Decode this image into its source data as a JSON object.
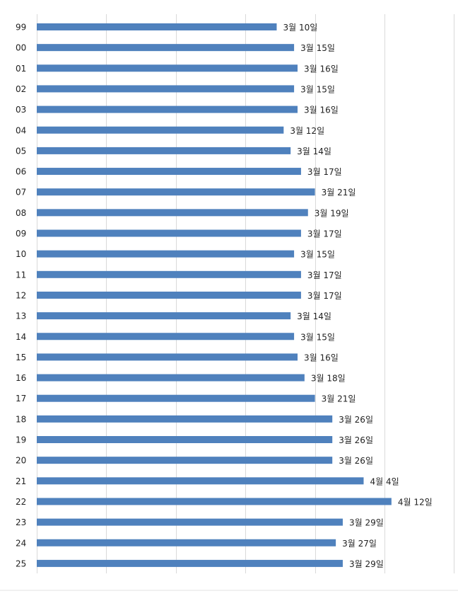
{
  "chart_data": {
    "type": "bar",
    "orientation": "horizontal",
    "categories": [
      "99",
      "00",
      "01",
      "02",
      "03",
      "04",
      "05",
      "06",
      "07",
      "08",
      "09",
      "10",
      "11",
      "12",
      "13",
      "14",
      "15",
      "16",
      "17",
      "18",
      "19",
      "20",
      "21",
      "22",
      "23",
      "24",
      "25"
    ],
    "series": [
      {
        "values": [
          69,
          74,
          75,
          74,
          75,
          71,
          73,
          76,
          80,
          78,
          76,
          74,
          76,
          76,
          73,
          74,
          75,
          77,
          80,
          85,
          85,
          85,
          94,
          102,
          88,
          86,
          88
        ]
      }
    ],
    "data_labels": [
      "3월 10일",
      "3월 15일",
      "3월 16일",
      "3월 15일",
      "3월 16일",
      "3월 12일",
      "3월 14일",
      "3월 17일",
      "3월 21일",
      "3월 19일",
      "3월 17일",
      "3월 15일",
      "3월 17일",
      "3월 17일",
      "3월 14일",
      "3월 15일",
      "3월 16일",
      "3월 18일",
      "3월 21일",
      "3월 26일",
      "3월 26일",
      "3월 26일",
      "4월 4일",
      "4월 12일",
      "3월 29일",
      "3월 27일",
      "3월 29일"
    ],
    "x_axis_note": "day of year",
    "xlim": [
      0,
      120
    ],
    "grid": true,
    "bar_color": "#4f81bd",
    "title": "",
    "xlabel": "",
    "ylabel": ""
  }
}
